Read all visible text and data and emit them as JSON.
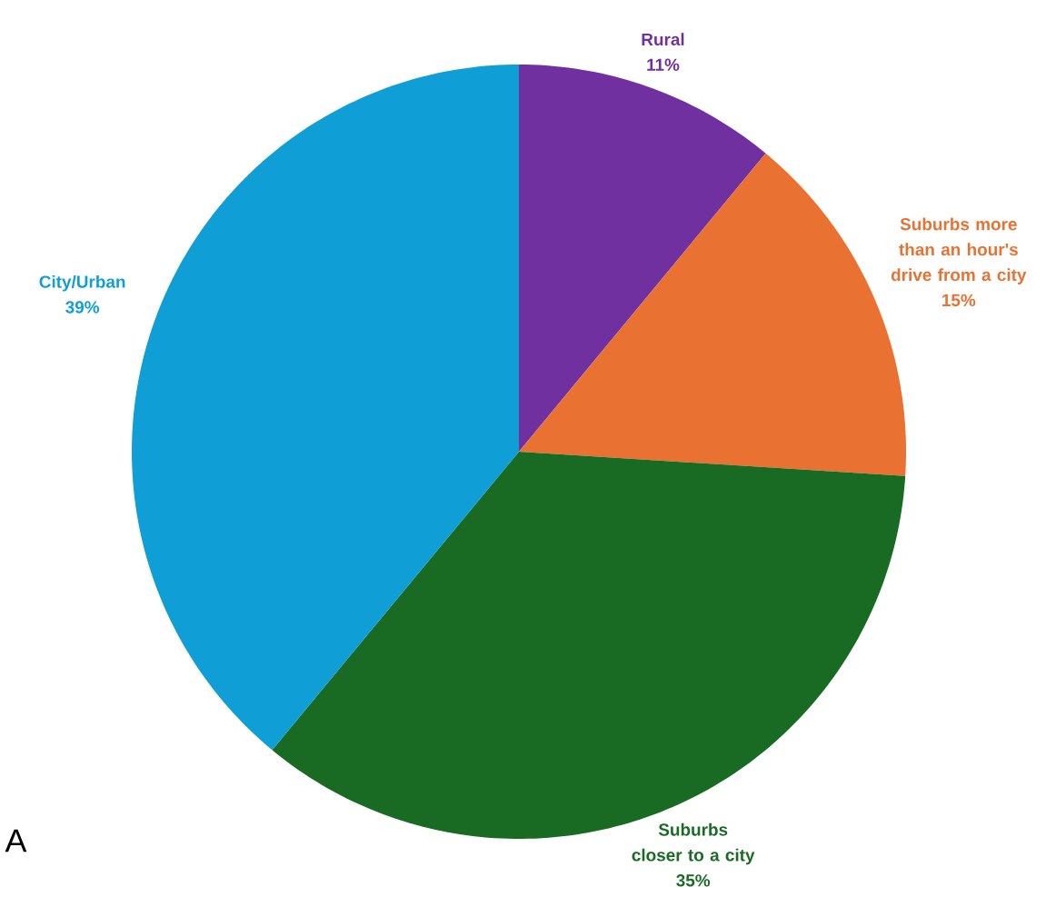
{
  "chart_data": {
    "type": "pie",
    "categories": [
      "Rural",
      "Suburbs more than an hour's drive from a city",
      "Suburbs closer to a city",
      "City/Urban"
    ],
    "values": [
      11,
      15,
      35,
      39
    ],
    "value_labels": [
      "11%",
      "15%",
      "35%",
      "39%"
    ],
    "colors": [
      "#7030a0",
      "#e97132",
      "#196b24",
      "#0f9ed5"
    ],
    "annotations": [
      "A"
    ]
  }
}
